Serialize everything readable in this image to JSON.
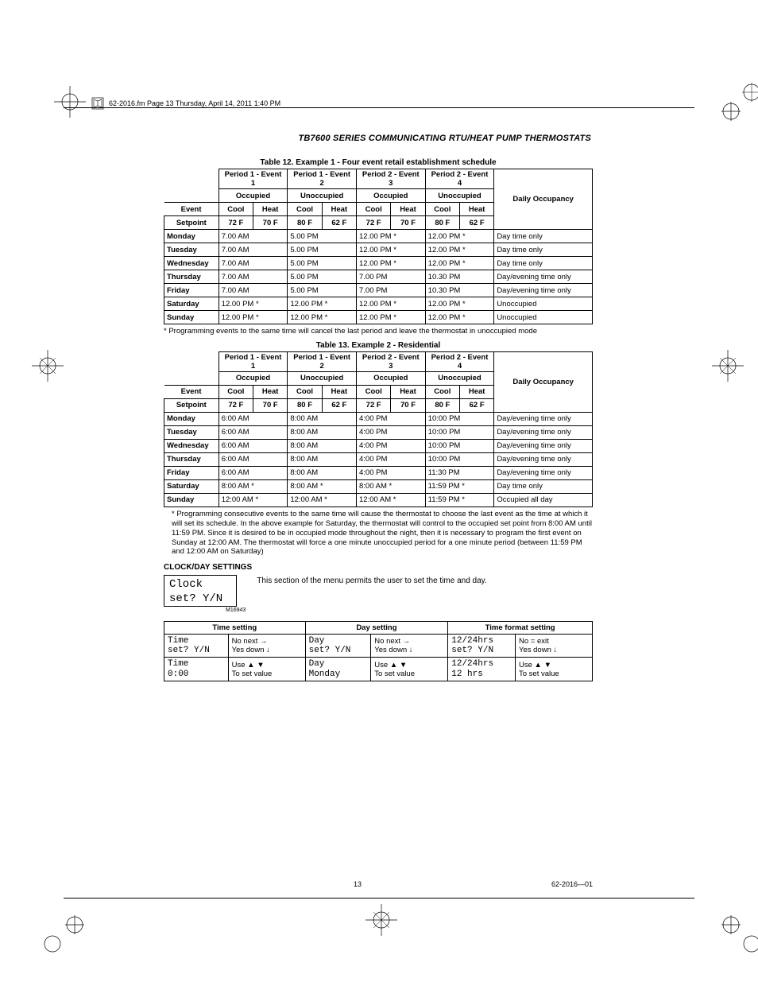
{
  "header": {
    "file_line": "62-2016.fm  Page 13  Thursday, April 14, 2011  1:40 PM",
    "doc_title": "TB7600 SERIES COMMUNICATING RTU/HEAT PUMP THERMOSTATS"
  },
  "table12": {
    "caption": "Table 12. Example 1 - Four event retail establishment schedule",
    "periods": [
      "Period 1 - Event 1",
      "Period 1 - Event 2",
      "Period 2 - Event 3",
      "Period 2 - Event 4"
    ],
    "event_row": "Event",
    "states": [
      "Occupied",
      "Unoccupied",
      "Occupied",
      "Unoccupied"
    ],
    "setpoint_label": "Setpoint",
    "ch": [
      "Cool",
      "Heat"
    ],
    "sp": [
      [
        "72  F",
        "70  F"
      ],
      [
        "80  F",
        "62  F"
      ],
      [
        "72  F",
        "70  F"
      ],
      [
        "80  F",
        "62  F"
      ]
    ],
    "occ_header": "Daily Occupancy",
    "rows": [
      {
        "d": "Monday",
        "v": [
          "7.00 AM",
          "5.00 PM",
          "12.00 PM *",
          "12.00 PM *"
        ],
        "o": "Day time only"
      },
      {
        "d": "Tuesday",
        "v": [
          "7.00 AM",
          "5.00 PM",
          "12.00 PM *",
          "12.00 PM *"
        ],
        "o": "Day time only"
      },
      {
        "d": "Wednesday",
        "v": [
          "7.00 AM",
          "5.00 PM",
          "12.00 PM *",
          "12.00 PM *"
        ],
        "o": "Day time only"
      },
      {
        "d": "Thursday",
        "v": [
          "7.00 AM",
          "5.00 PM",
          "7.00 PM",
          "10.30 PM"
        ],
        "o": "Day/evening time only"
      },
      {
        "d": "Friday",
        "v": [
          "7.00 AM",
          "5.00 PM",
          "7.00 PM",
          "10.30 PM"
        ],
        "o": "Day/evening time only"
      },
      {
        "d": "Saturday",
        "v": [
          "12.00 PM *",
          "12.00 PM *",
          "12.00 PM *",
          "12.00 PM *"
        ],
        "o": "Unoccupied"
      },
      {
        "d": "Sunday",
        "v": [
          "12.00 PM *",
          "12.00 PM *",
          "12.00 PM *",
          "12.00 PM *"
        ],
        "o": "Unoccupied"
      }
    ],
    "note": "* Programming events to the same time will cancel the last period and leave the thermostat in unoccupied mode"
  },
  "table13": {
    "caption": "Table 13. Example 2 - Residential",
    "periods": [
      "Period 1 - Event 1",
      "Period 1 - Event 2",
      "Period 2 - Event 3",
      "Period 2 - Event 4"
    ],
    "event_row": "Event",
    "states": [
      "Occupied",
      "Unoccupied",
      "Occupied",
      "Unoccupied"
    ],
    "setpoint_label": "Setpoint",
    "ch": [
      "Cool",
      "Heat"
    ],
    "sp": [
      [
        "72  F",
        "70  F"
      ],
      [
        "80  F",
        "62  F"
      ],
      [
        "72  F",
        "70  F"
      ],
      [
        "80  F",
        "62  F"
      ]
    ],
    "occ_header": "Daily Occupancy",
    "rows": [
      {
        "d": "Monday",
        "v": [
          "6:00 AM",
          "8:00 AM",
          "4:00 PM",
          "10:00 PM"
        ],
        "o": "Day/evening time only"
      },
      {
        "d": "Tuesday",
        "v": [
          "6:00 AM",
          "8:00 AM",
          "4:00 PM",
          "10:00 PM"
        ],
        "o": "Day/evening time only"
      },
      {
        "d": "Wednesday",
        "v": [
          "6:00 AM",
          "8:00 AM",
          "4:00 PM",
          "10:00 PM"
        ],
        "o": "Day/evening time only"
      },
      {
        "d": "Thursday",
        "v": [
          "6:00 AM",
          "8:00 AM",
          "4:00 PM",
          "10:00 PM"
        ],
        "o": "Day/evening time only"
      },
      {
        "d": "Friday",
        "v": [
          "6:00 AM",
          "8:00 AM",
          "4:00 PM",
          "11:30 PM"
        ],
        "o": "Day/evening time only"
      },
      {
        "d": "Saturday",
        "v": [
          "8:00 AM *",
          "8:00 AM *",
          "8:00 AM *",
          "11:59 PM *"
        ],
        "o": "Day time only"
      },
      {
        "d": "Sunday",
        "v": [
          "12:00 AM *",
          "12:00 AM *",
          "12:00 AM *",
          "11:59 PM *"
        ],
        "o": "Occupied all day"
      }
    ],
    "note": "* Programming consecutive events to the same time will cause the thermostat to choose the last event as the time at which it will set its schedule. In the above example for Saturday, the thermostat will control to the occupied set point from 8:00 AM until 11:59 PM. Since it is desired to be in occupied mode throughout the night, then it is necessary to program the first event on Sunday at 12:00 AM. The thermostat will force a one minute unoccupied period for a one minute period (between 11:59 PM and 12:00 AM on Saturday)"
  },
  "clockday": {
    "heading": "CLOCK/DAY SETTINGS",
    "text": "This section of the menu permits the user to set the time and day.",
    "lcd1": "Clock",
    "lcd2": "set? Y/N",
    "lcd_sub": "M16943"
  },
  "settings": {
    "headers": [
      "Time setting",
      "Day setting",
      "Time format setting"
    ],
    "rows": [
      {
        "c": [
          {
            "l1": "Time",
            "l2": "set? Y/N",
            "r1": "No next →",
            "r2": "Yes down ↓"
          },
          {
            "l1": "Day",
            "l2": "set? Y/N",
            "r1": "No next →",
            "r2": "Yes down ↓"
          },
          {
            "l1": "12/24hrs",
            "l2": "set? Y/N",
            "r1": "No = exit",
            "r2": "Yes down ↓"
          }
        ]
      },
      {
        "c": [
          {
            "l1": "Time",
            "l2": "0:00",
            "r1": "Use ▲  ▼",
            "r2": "To set value"
          },
          {
            "l1": "Day",
            "l2": "Monday",
            "r1": "Use ▲  ▼",
            "r2": "To set value"
          },
          {
            "l1": "12/24hrs",
            "l2": "12 hrs",
            "r1": "Use ▲  ▼",
            "r2": "To set value"
          }
        ]
      }
    ]
  },
  "footer": {
    "page": "13",
    "doc_num": "62-2016—01"
  }
}
